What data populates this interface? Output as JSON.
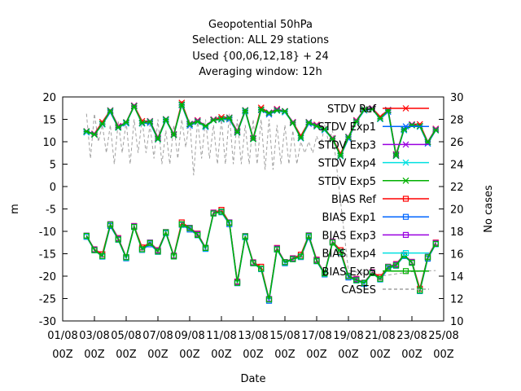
{
  "chart_data": {
    "type": "line",
    "title_lines": [
      "Geopotential 50hPa",
      "Selection: ALL      29 stations",
      "Used {00,06,12,18} + 24",
      "Averaging window: 12h"
    ],
    "xlabel": "Date",
    "ylabel": "m",
    "y2label": "No cases",
    "ylim": [
      -30,
      20
    ],
    "y2lim": [
      10,
      30
    ],
    "yticks": [
      -30,
      -25,
      -20,
      -15,
      -10,
      -5,
      0,
      5,
      10,
      15,
      20
    ],
    "y2ticks": [
      10,
      12,
      14,
      16,
      18,
      20,
      22,
      24,
      26,
      28,
      30
    ],
    "xlim": [
      0,
      24
    ],
    "xticks": [
      {
        "x": 0,
        "line1": "01/08",
        "line2": "00Z"
      },
      {
        "x": 2,
        "line1": "03/08",
        "line2": "00Z"
      },
      {
        "x": 4,
        "line1": "05/08",
        "line2": "00Z"
      },
      {
        "x": 6,
        "line1": "07/08",
        "line2": "00Z"
      },
      {
        "x": 8,
        "line1": "09/08",
        "line2": "00Z"
      },
      {
        "x": 10,
        "line1": "11/08",
        "line2": "00Z"
      },
      {
        "x": 12,
        "line1": "13/08",
        "line2": "00Z"
      },
      {
        "x": 14,
        "line1": "15/08",
        "line2": "00Z"
      },
      {
        "x": 16,
        "line1": "17/08",
        "line2": "00Z"
      },
      {
        "x": 18,
        "line1": "19/08",
        "line2": "00Z"
      },
      {
        "x": 20,
        "line1": "21/08",
        "line2": "00Z"
      },
      {
        "x": 22,
        "line1": "23/08",
        "line2": "00Z"
      },
      {
        "x": 24,
        "line1": "25/08",
        "line2": "00Z"
      }
    ],
    "x": [
      1.5,
      2.0,
      2.5,
      3.0,
      3.5,
      4.0,
      4.5,
      5.0,
      5.5,
      6.0,
      6.5,
      7.0,
      7.5,
      8.0,
      8.5,
      9.0,
      9.5,
      10.0,
      10.5,
      11.0,
      11.5,
      12.0,
      12.5,
      13.0,
      13.5,
      14.0,
      14.5,
      15.0,
      15.5,
      16.0,
      16.5,
      17.0,
      17.5,
      18.0,
      18.5,
      19.0,
      19.5,
      20.0,
      20.5,
      21.0,
      21.5,
      22.0,
      22.5,
      23.0,
      23.5
    ],
    "stdv": [
      12.3,
      11.6,
      14.0,
      16.9,
      13.2,
      14.3,
      17.9,
      14.2,
      14.5,
      10.6,
      15.0,
      11.5,
      18.3,
      13.9,
      14.5,
      13.5,
      14.8,
      15.1,
      15.3,
      12.1,
      17.0,
      10.6,
      17.2,
      16.4,
      17.0,
      16.8,
      14.2,
      10.9,
      14.3,
      13.5,
      12.8,
      10.6,
      6.9,
      11.0,
      14.5,
      17.2,
      17.3,
      15.2,
      17.0,
      6.9,
      12.8,
      13.7,
      13.5,
      9.9,
      12.6
    ],
    "bias": [
      -11.0,
      -14.2,
      -15.5,
      -8.5,
      -11.8,
      -15.8,
      -9.0,
      -14.0,
      -12.6,
      -14.5,
      -10.2,
      -15.6,
      -8.4,
      -9.3,
      -10.8,
      -13.7,
      -6.0,
      -5.6,
      -8.1,
      -21.5,
      -11.1,
      -17.1,
      -18.3,
      -25.2,
      -14.0,
      -16.9,
      -16.2,
      -15.6,
      -11.0,
      -16.6,
      -19.4,
      -12.5,
      -14.6,
      -20.0,
      -20.9,
      -21.5,
      -19.3,
      -20.6,
      -18.0,
      -17.6,
      -15.3,
      -17.0,
      -23.2,
      -15.8,
      -12.8
    ],
    "cases": [
      [
        1.5,
        28.5
      ],
      [
        1.75,
        24.5
      ],
      [
        2.0,
        28.5
      ],
      [
        2.25,
        26.0
      ],
      [
        2.5,
        27.5
      ],
      [
        2.75,
        25.0
      ],
      [
        3.0,
        27.5
      ],
      [
        3.25,
        24.0
      ],
      [
        3.5,
        27.8
      ],
      [
        3.75,
        25.0
      ],
      [
        4.0,
        27.8
      ],
      [
        4.25,
        24.0
      ],
      [
        4.5,
        28.0
      ],
      [
        4.75,
        25.0
      ],
      [
        5.0,
        28.0
      ],
      [
        5.25,
        25.0
      ],
      [
        5.5,
        27.5
      ],
      [
        5.75,
        24.5
      ],
      [
        6.0,
        28.0
      ],
      [
        6.25,
        24.0
      ],
      [
        6.5,
        27.0
      ],
      [
        6.75,
        24.0
      ],
      [
        7.0,
        27.5
      ],
      [
        7.25,
        24.5
      ],
      [
        7.5,
        28.0
      ],
      [
        7.75,
        25.5
      ],
      [
        8.0,
        28.0
      ],
      [
        8.25,
        23.0
      ],
      [
        8.5,
        28.0
      ],
      [
        8.75,
        24.5
      ],
      [
        9.0,
        28.0
      ],
      [
        9.25,
        24.5
      ],
      [
        9.5,
        27.5
      ],
      [
        9.75,
        24.0
      ],
      [
        10.0,
        28.0
      ],
      [
        10.25,
        24.0
      ],
      [
        10.5,
        28.5
      ],
      [
        10.75,
        24.0
      ],
      [
        11.0,
        28.0
      ],
      [
        11.25,
        24.0
      ],
      [
        11.5,
        27.5
      ],
      [
        11.75,
        24.0
      ],
      [
        12.0,
        28.0
      ],
      [
        12.25,
        24.0
      ],
      [
        12.5,
        28.0
      ],
      [
        12.75,
        23.5
      ],
      [
        13.0,
        28.0
      ],
      [
        13.25,
        23.5
      ],
      [
        13.5,
        27.5
      ],
      [
        13.75,
        24.0
      ],
      [
        14.0,
        27.5
      ],
      [
        14.25,
        24.0
      ],
      [
        14.5,
        27.0
      ],
      [
        14.75,
        24.0
      ],
      [
        15.0,
        26.0
      ],
      [
        15.25,
        25.0
      ],
      [
        15.5,
        26.0
      ],
      [
        15.75,
        25.0
      ],
      [
        16.0,
        26.5
      ],
      [
        16.25,
        25.5
      ],
      [
        16.5,
        27.5
      ],
      [
        16.75,
        26.0
      ],
      [
        17.0,
        27.0
      ],
      [
        18.0,
        14.5
      ],
      [
        20.0,
        14.0
      ],
      [
        22.0,
        14.4
      ],
      [
        23.5,
        14.5
      ]
    ],
    "series_styles": {
      "stdv_marker": "x",
      "bias_marker": "square"
    },
    "legend": [
      {
        "label": "STDV Ref",
        "color": "#ff0000",
        "marker": "x",
        "dash": ""
      },
      {
        "label": "STDV Exp1",
        "color": "#0066ff",
        "marker": "x",
        "dash": ""
      },
      {
        "label": "STDV Exp3",
        "color": "#9a00e0",
        "marker": "x",
        "dash": ""
      },
      {
        "label": "STDV Exp4",
        "color": "#00e0e0",
        "marker": "x",
        "dash": ""
      },
      {
        "label": "STDV Exp5",
        "color": "#00b000",
        "marker": "x",
        "dash": ""
      },
      {
        "label": "BIAS Ref",
        "color": "#ff0000",
        "marker": "square",
        "dash": ""
      },
      {
        "label": "BIAS Exp1",
        "color": "#0066ff",
        "marker": "square",
        "dash": ""
      },
      {
        "label": "BIAS Exp3",
        "color": "#9a00e0",
        "marker": "square",
        "dash": ""
      },
      {
        "label": "BIAS Exp4",
        "color": "#00e0e0",
        "marker": "square",
        "dash": ""
      },
      {
        "label": "BIAS Exp5",
        "color": "#00b000",
        "marker": "square",
        "dash": ""
      },
      {
        "label": "CASES",
        "color": "#a0a0a0",
        "marker": "none",
        "dash": "4,3"
      }
    ],
    "grid": false,
    "legend_placement": "top-right"
  }
}
